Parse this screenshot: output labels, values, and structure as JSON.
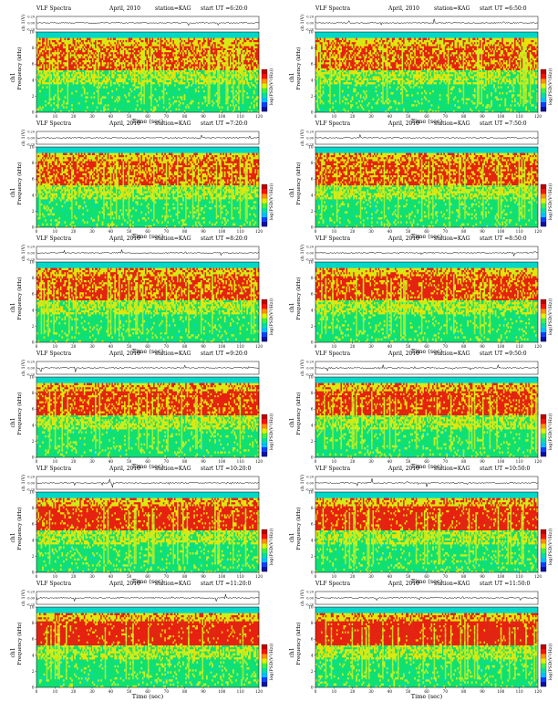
{
  "common": {
    "title": "VLF Spectra",
    "date": "April, 2010",
    "station": "station=KAG",
    "start_prefix": "start UT =",
    "waveform_ylabel": "ch 1(V)",
    "waveform_ticks": [
      "0.20",
      "0.00",
      "-0.20"
    ],
    "spectrogram_ylabel": "Frequency (kHz)",
    "channel_label": "ch1",
    "colorbar_label": "log(PSD(V²/Hz))",
    "xlabel": "Time (sec)",
    "x_ticks": [
      "0",
      "10",
      "20",
      "30",
      "40",
      "50",
      "60",
      "70",
      "80",
      "90",
      "100",
      "110",
      "120"
    ],
    "y_ticks": [
      "0",
      "2",
      "4",
      "6",
      "8",
      "10"
    ],
    "colors": {
      "background": "#00d8c8",
      "low": "#10e070",
      "mid": "#c8f020",
      "high": "#f0e000",
      "peak": "#e82010",
      "colorbar": [
        "#1010a0",
        "#1040ff",
        "#00c0ff",
        "#00e0a0",
        "#40f040",
        "#e0f000",
        "#ff9000",
        "#ff1000",
        "#c00000"
      ]
    }
  },
  "chart_data": [
    {
      "type": "heatmap",
      "start_ut": "6:20:0",
      "x_range": [
        0,
        120
      ],
      "y_range": [
        0,
        10
      ],
      "xlabel": "Time (sec)",
      "ylabel": "Frequency (kHz)"
    },
    {
      "type": "heatmap",
      "start_ut": "6:50:0",
      "x_range": [
        0,
        120
      ],
      "y_range": [
        0,
        10
      ],
      "xlabel": "Time (sec)",
      "ylabel": "Frequency (kHz)"
    },
    {
      "type": "heatmap",
      "start_ut": "7:20:0",
      "x_range": [
        0,
        120
      ],
      "y_range": [
        0,
        10
      ],
      "xlabel": "Time (sec)",
      "ylabel": "Frequency (kHz)"
    },
    {
      "type": "heatmap",
      "start_ut": "7:50:0",
      "x_range": [
        0,
        120
      ],
      "y_range": [
        0,
        10
      ],
      "xlabel": "Time (sec)",
      "ylabel": "Frequency (kHz)"
    },
    {
      "type": "heatmap",
      "start_ut": "8:20:0",
      "x_range": [
        0,
        120
      ],
      "y_range": [
        0,
        10
      ],
      "xlabel": "Time (sec)",
      "ylabel": "Frequency (kHz)"
    },
    {
      "type": "heatmap",
      "start_ut": "8:50:0",
      "x_range": [
        0,
        120
      ],
      "y_range": [
        0,
        10
      ],
      "xlabel": "Time (sec)",
      "ylabel": "Frequency (kHz)"
    },
    {
      "type": "heatmap",
      "start_ut": "9:20:0",
      "x_range": [
        0,
        120
      ],
      "y_range": [
        0,
        10
      ],
      "xlabel": "Time (sec)",
      "ylabel": "Frequency (kHz)"
    },
    {
      "type": "heatmap",
      "start_ut": "9:50:0",
      "x_range": [
        0,
        120
      ],
      "y_range": [
        0,
        10
      ],
      "xlabel": "Time (sec)",
      "ylabel": "Frequency (kHz)"
    },
    {
      "type": "heatmap",
      "start_ut": "10:20:0",
      "x_range": [
        0,
        120
      ],
      "y_range": [
        0,
        10
      ],
      "xlabel": "Time (sec)",
      "ylabel": "Frequency (kHz)"
    },
    {
      "type": "heatmap",
      "start_ut": "10:50:0",
      "x_range": [
        0,
        120
      ],
      "y_range": [
        0,
        10
      ],
      "xlabel": "Time (sec)",
      "ylabel": "Frequency (kHz)"
    },
    {
      "type": "heatmap",
      "start_ut": "11:20:0",
      "x_range": [
        0,
        120
      ],
      "y_range": [
        0,
        10
      ],
      "xlabel": "Time (sec)",
      "ylabel": "Frequency (kHz)"
    },
    {
      "type": "heatmap",
      "start_ut": "11:50:0",
      "x_range": [
        0,
        120
      ],
      "y_range": [
        0,
        10
      ],
      "xlabel": "Time (sec)",
      "ylabel": "Frequency (kHz)"
    }
  ]
}
